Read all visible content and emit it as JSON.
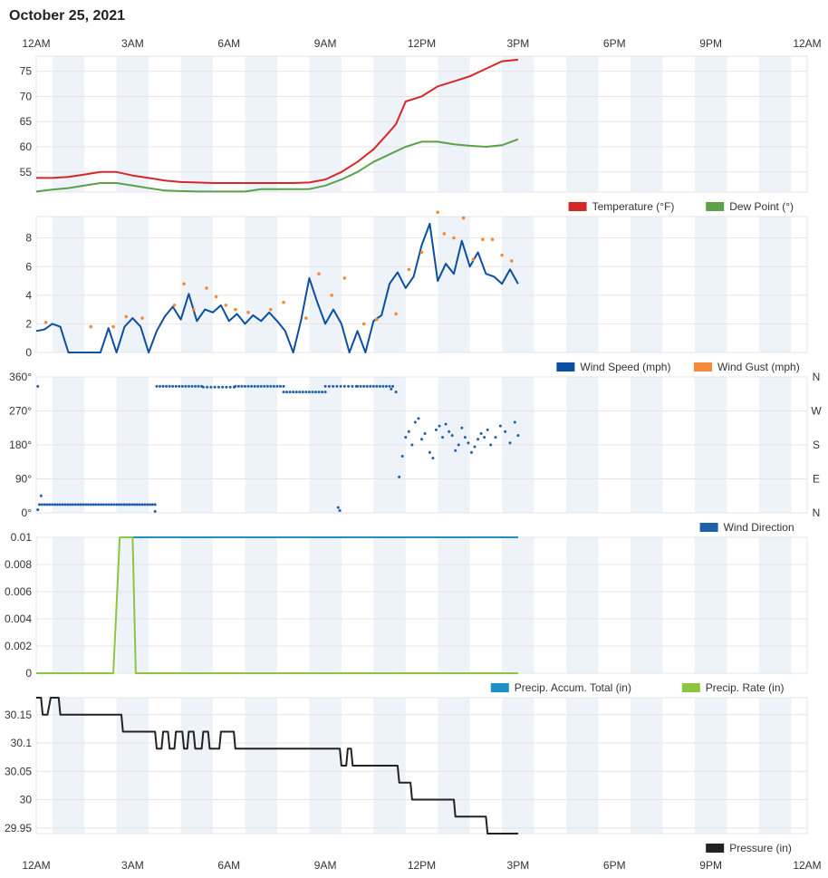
{
  "page": {
    "title": "October 25, 2021"
  },
  "time_axis": {
    "labels": [
      "12AM",
      "3AM",
      "6AM",
      "9AM",
      "12PM",
      "3PM",
      "6PM",
      "9PM",
      "12AM"
    ],
    "range_hours": [
      0,
      24
    ]
  },
  "colors": {
    "temperature": "#d62728",
    "dew_point": "#5aa14a",
    "wind_speed": "#0a4fa1",
    "wind_gust": "#f58a3a",
    "wind_direction": "#1f5ea8",
    "precip_total": "#1e90c8",
    "precip_rate": "#8cc63f",
    "pressure": "#222222",
    "band": "#edf3f8",
    "grid": "#e4e4e4"
  },
  "chart_data": [
    {
      "id": "temp",
      "type": "line",
      "ylim": [
        51,
        78
      ],
      "yticks": [
        55,
        60,
        65,
        70,
        75
      ],
      "legend": [
        {
          "label": "Temperature (°F)",
          "color_key": "temperature"
        },
        {
          "label": "Dew Point (°)",
          "color_key": "dew_point"
        }
      ],
      "series": [
        {
          "name": "Temperature (°F)",
          "color_key": "temperature",
          "x": [
            0,
            0.5,
            1,
            1.5,
            2,
            2.5,
            3,
            3.5,
            4,
            4.5,
            5,
            5.5,
            6,
            6.5,
            7,
            7.5,
            8,
            8.5,
            9,
            9.5,
            10,
            10.5,
            11,
            11.2,
            11.5,
            12,
            12.5,
            13,
            13.5,
            14,
            14.5,
            15
          ],
          "y": [
            53.8,
            53.8,
            54.0,
            54.5,
            55.0,
            55.0,
            54.3,
            53.8,
            53.3,
            53.0,
            52.9,
            52.8,
            52.8,
            52.8,
            52.8,
            52.8,
            52.8,
            52.9,
            53.5,
            55.0,
            57.0,
            59.5,
            63.0,
            64.5,
            69.0,
            70.0,
            72.0,
            73.0,
            74.0,
            75.5,
            77.0,
            77.3
          ]
        },
        {
          "name": "Dew Point (°)",
          "color_key": "dew_point",
          "x": [
            0,
            0.5,
            1,
            1.5,
            2,
            2.5,
            3,
            3.5,
            4,
            4.5,
            5,
            5.5,
            6,
            6.5,
            7,
            7.5,
            8,
            8.5,
            9,
            9.5,
            10,
            10.5,
            11,
            11.5,
            12,
            12.5,
            13,
            13.5,
            14,
            14.5,
            15
          ],
          "y": [
            51.1,
            51.5,
            51.8,
            52.3,
            52.8,
            52.8,
            52.3,
            51.8,
            51.3,
            51.2,
            51.1,
            51.1,
            51.1,
            51.1,
            51.6,
            51.6,
            51.6,
            51.6,
            52.3,
            53.5,
            55.0,
            57.0,
            58.5,
            60.0,
            61.0,
            61.0,
            60.5,
            60.2,
            60.0,
            60.3,
            61.5
          ]
        }
      ]
    },
    {
      "id": "wind",
      "type": "line+scatter",
      "ylim": [
        0,
        9.5
      ],
      "yticks": [
        0,
        2,
        4,
        6,
        8
      ],
      "legend": [
        {
          "label": "Wind Speed (mph)",
          "color_key": "wind_speed"
        },
        {
          "label": "Wind Gust (mph)",
          "color_key": "wind_gust"
        }
      ],
      "series": [
        {
          "name": "Wind Speed (mph)",
          "color_key": "wind_speed",
          "x": [
            0,
            0.25,
            0.5,
            0.75,
            1,
            1.25,
            1.5,
            1.75,
            2,
            2.25,
            2.5,
            2.75,
            3,
            3.25,
            3.5,
            3.75,
            4,
            4.25,
            4.5,
            4.75,
            5,
            5.25,
            5.5,
            5.75,
            6,
            6.25,
            6.5,
            6.75,
            7,
            7.25,
            7.5,
            7.75,
            8,
            8.25,
            8.5,
            8.75,
            9,
            9.25,
            9.5,
            9.75,
            10,
            10.25,
            10.5,
            10.75,
            11,
            11.25,
            11.5,
            11.75,
            12,
            12.25,
            12.5,
            12.75,
            13,
            13.25,
            13.5,
            13.75,
            14,
            14.25,
            14.5,
            14.75,
            15
          ],
          "y": [
            1.5,
            1.6,
            2.0,
            1.8,
            0,
            0,
            0,
            0,
            0,
            1.7,
            0,
            1.8,
            2.4,
            1.8,
            0,
            1.5,
            2.5,
            3.2,
            2.3,
            4.1,
            2.2,
            3.0,
            2.8,
            3.3,
            2.2,
            2.7,
            2.0,
            2.6,
            2.2,
            2.8,
            2.2,
            1.5,
            0,
            2.3,
            5.2,
            3.5,
            2.0,
            3.0,
            2.0,
            0,
            1.5,
            0,
            2.2,
            2.6,
            4.8,
            5.6,
            4.5,
            5.3,
            7.5,
            9.0,
            5.0,
            6.2,
            5.5,
            7.8,
            6.0,
            7.0,
            5.5,
            5.3,
            4.8,
            5.8,
            4.8
          ]
        },
        {
          "name": "Wind Gust (mph)",
          "color_key": "wind_gust",
          "marker": "dot",
          "x": [
            0.3,
            1.7,
            2.4,
            2.8,
            3.3,
            4.3,
            4.6,
            4.9,
            5.3,
            5.6,
            5.9,
            6.2,
            6.6,
            7.3,
            7.7,
            8.4,
            8.8,
            9.2,
            9.6,
            10.2,
            10.6,
            11.2,
            11.6,
            12.0,
            12.5,
            12.7,
            13.0,
            13.3,
            13.6,
            13.9,
            14.2,
            14.5,
            14.8
          ],
          "y": [
            2.1,
            1.8,
            1.8,
            2.5,
            2.4,
            3.3,
            4.8,
            3.0,
            4.5,
            3.9,
            3.3,
            3.0,
            2.8,
            3.0,
            3.5,
            2.4,
            5.5,
            4.0,
            5.2,
            2.0,
            2.3,
            2.7,
            5.8,
            7.0,
            9.8,
            8.3,
            8.0,
            9.4,
            6.5,
            7.9,
            7.9,
            6.8,
            6.4
          ]
        }
      ]
    },
    {
      "id": "direction",
      "type": "scatter",
      "ylim": [
        0,
        360
      ],
      "yticks": [
        "0°",
        "90°",
        "180°",
        "270°",
        "360°"
      ],
      "right_ticks": [
        "N",
        "E",
        "S",
        "W",
        "N"
      ],
      "legend": [
        {
          "label": "Wind Direction",
          "color_key": "wind_direction"
        }
      ],
      "groups": [
        {
          "x_range": [
            0.1,
            3.75
          ],
          "step": 0.08,
          "y": 22
        },
        {
          "x_range": [
            3.75,
            5.2
          ],
          "step": 0.1,
          "y": 335
        },
        {
          "x_range": [
            5.2,
            6.2
          ],
          "step": 0.12,
          "y": 333
        },
        {
          "x_range": [
            6.2,
            7.7
          ],
          "step": 0.1,
          "y": 335
        },
        {
          "x_range": [
            7.7,
            9.0
          ],
          "step": 0.1,
          "y": 320
        },
        {
          "x_range": [
            9.0,
            10.0
          ],
          "step": 0.12,
          "y": 335
        },
        {
          "x_range": [
            10.0,
            11.1
          ],
          "step": 0.1,
          "y": 335
        }
      ],
      "points": [
        {
          "x": 0.05,
          "y": 335
        },
        {
          "x": 0.15,
          "y": 45
        },
        {
          "x": 0.05,
          "y": 8
        },
        {
          "x": 3.7,
          "y": 4
        },
        {
          "x": 9.4,
          "y": 14
        },
        {
          "x": 9.45,
          "y": 6
        },
        {
          "x": 11.2,
          "y": 320
        },
        {
          "x": 11.05,
          "y": 328
        },
        {
          "x": 11.3,
          "y": 95
        },
        {
          "x": 11.4,
          "y": 150
        },
        {
          "x": 11.5,
          "y": 200
        },
        {
          "x": 11.6,
          "y": 215
        },
        {
          "x": 11.7,
          "y": 180
        },
        {
          "x": 11.8,
          "y": 240
        },
        {
          "x": 11.9,
          "y": 250
        },
        {
          "x": 12.0,
          "y": 195
        },
        {
          "x": 12.1,
          "y": 210
        },
        {
          "x": 12.25,
          "y": 160
        },
        {
          "x": 12.35,
          "y": 145
        },
        {
          "x": 12.45,
          "y": 220
        },
        {
          "x": 12.55,
          "y": 230
        },
        {
          "x": 12.65,
          "y": 200
        },
        {
          "x": 12.75,
          "y": 235
        },
        {
          "x": 12.85,
          "y": 215
        },
        {
          "x": 12.95,
          "y": 205
        },
        {
          "x": 13.05,
          "y": 165
        },
        {
          "x": 13.15,
          "y": 180
        },
        {
          "x": 13.25,
          "y": 225
        },
        {
          "x": 13.35,
          "y": 200
        },
        {
          "x": 13.45,
          "y": 185
        },
        {
          "x": 13.55,
          "y": 160
        },
        {
          "x": 13.65,
          "y": 175
        },
        {
          "x": 13.75,
          "y": 195
        },
        {
          "x": 13.85,
          "y": 210
        },
        {
          "x": 13.95,
          "y": 200
        },
        {
          "x": 14.05,
          "y": 220
        },
        {
          "x": 14.15,
          "y": 180
        },
        {
          "x": 14.3,
          "y": 200
        },
        {
          "x": 14.45,
          "y": 230
        },
        {
          "x": 14.6,
          "y": 215
        },
        {
          "x": 14.75,
          "y": 185
        },
        {
          "x": 14.9,
          "y": 240
        },
        {
          "x": 15.0,
          "y": 205
        }
      ]
    },
    {
      "id": "precip",
      "type": "line",
      "ylim": [
        0,
        0.01
      ],
      "yticks": [
        "0",
        "0.002",
        "0.004",
        "0.006",
        "0.008",
        "0.01"
      ],
      "legend": [
        {
          "label": "Precip. Accum. Total (in)",
          "color_key": "precip_total"
        },
        {
          "label": "Precip. Rate (in)",
          "color_key": "precip_rate"
        }
      ],
      "series": [
        {
          "name": "Precip. Accum. Total (in)",
          "color_key": "precip_total",
          "x": [
            2.75,
            3.0,
            15.0
          ],
          "y": [
            0.01,
            0.01,
            0.01
          ]
        },
        {
          "name": "Precip. Rate (in)",
          "color_key": "precip_rate",
          "x": [
            0,
            2.4,
            2.6,
            3.0,
            3.1,
            15.0
          ],
          "y": [
            0,
            0,
            0.01,
            0.01,
            0,
            0
          ]
        }
      ]
    },
    {
      "id": "pressure",
      "type": "line",
      "ylim": [
        29.94,
        30.18
      ],
      "yticks": [
        "29.95",
        "30",
        "30.05",
        "30.1",
        "30.15"
      ],
      "legend": [
        {
          "label": "Pressure (in)",
          "color_key": "pressure"
        }
      ],
      "series": [
        {
          "name": "Pressure (in)",
          "color_key": "pressure",
          "x": [
            0,
            0.15,
            0.2,
            0.35,
            0.45,
            0.55,
            0.6,
            0.7,
            0.75,
            2.65,
            2.7,
            3.7,
            3.75,
            3.9,
            3.95,
            4.1,
            4.15,
            4.3,
            4.35,
            4.55,
            4.6,
            4.7,
            4.75,
            4.9,
            4.95,
            5.15,
            5.2,
            5.35,
            5.4,
            5.7,
            5.75,
            6.15,
            6.2,
            9.45,
            9.5,
            9.65,
            9.7,
            9.8,
            9.85,
            11.25,
            11.3,
            11.65,
            11.7,
            13.0,
            13.05,
            13.4,
            13.45,
            14.0,
            14.05,
            15.0
          ],
          "y": [
            30.18,
            30.18,
            30.15,
            30.15,
            30.18,
            30.18,
            30.18,
            30.18,
            30.15,
            30.15,
            30.12,
            30.12,
            30.09,
            30.09,
            30.12,
            30.12,
            30.09,
            30.09,
            30.12,
            30.12,
            30.09,
            30.09,
            30.12,
            30.12,
            30.09,
            30.09,
            30.12,
            30.12,
            30.09,
            30.09,
            30.12,
            30.12,
            30.09,
            30.09,
            30.06,
            30.06,
            30.09,
            30.09,
            30.06,
            30.06,
            30.03,
            30.03,
            30.0,
            30.0,
            29.97,
            29.97,
            29.97,
            29.97,
            29.94,
            29.94
          ]
        }
      ]
    }
  ]
}
